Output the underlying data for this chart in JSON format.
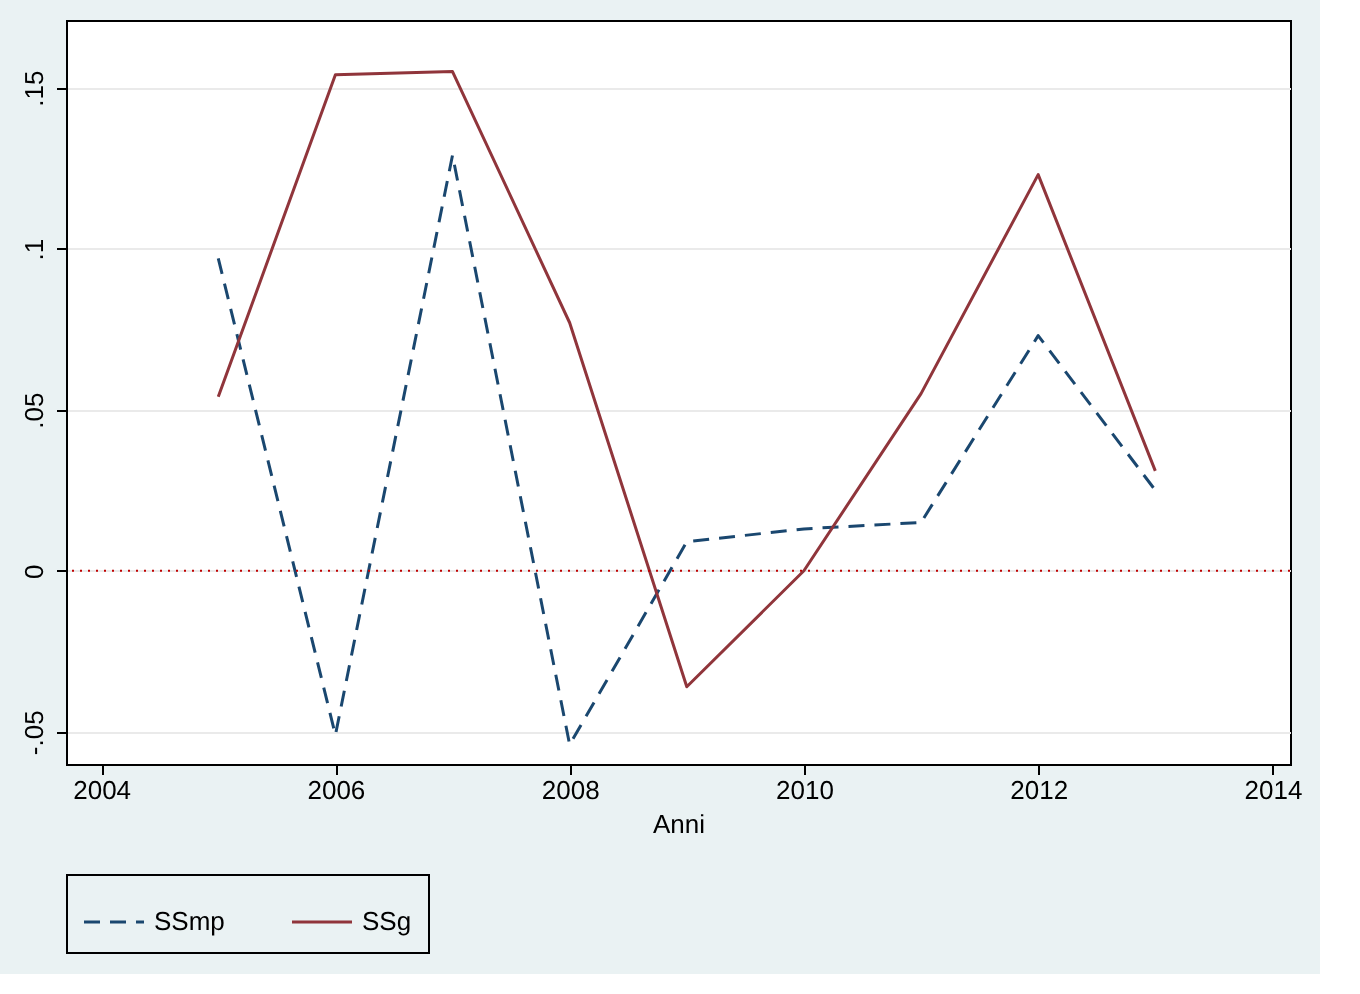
{
  "chart_data": {
    "type": "line",
    "xlabel": "Anni",
    "x": [
      2005,
      2006,
      2007,
      2008,
      2009,
      2010,
      2011,
      2012,
      2013
    ],
    "series": [
      {
        "name": "SSmp",
        "color": "#1a476f",
        "line_style": "dashed",
        "values": [
          0.097,
          -0.051,
          0.129,
          -0.054,
          0.009,
          0.013,
          0.015,
          0.073,
          0.025
        ]
      },
      {
        "name": "SSg",
        "color": "#90353b",
        "line_style": "solid",
        "values": [
          0.054,
          0.154,
          0.155,
          0.077,
          -0.036,
          0.0,
          0.055,
          0.123,
          0.031
        ]
      }
    ],
    "xlim": [
      2003.7,
      2014.15
    ],
    "xticks": [
      2004,
      2006,
      2008,
      2010,
      2012,
      2014
    ],
    "ylim": [
      -0.06,
      0.171
    ],
    "yticks": [
      {
        "value": -0.05,
        "label": "-.05"
      },
      0,
      {
        "value": 0.05,
        "label": ".05"
      },
      {
        "value": 0.1,
        "label": ".1"
      },
      {
        "value": 0.15,
        "label": ".15"
      }
    ],
    "ref_lines": [
      {
        "axis": "y",
        "value": 0,
        "color": "#c00000",
        "line_style": "dotted"
      }
    ],
    "grid": "y",
    "legend": "bottom",
    "marker": "none"
  }
}
